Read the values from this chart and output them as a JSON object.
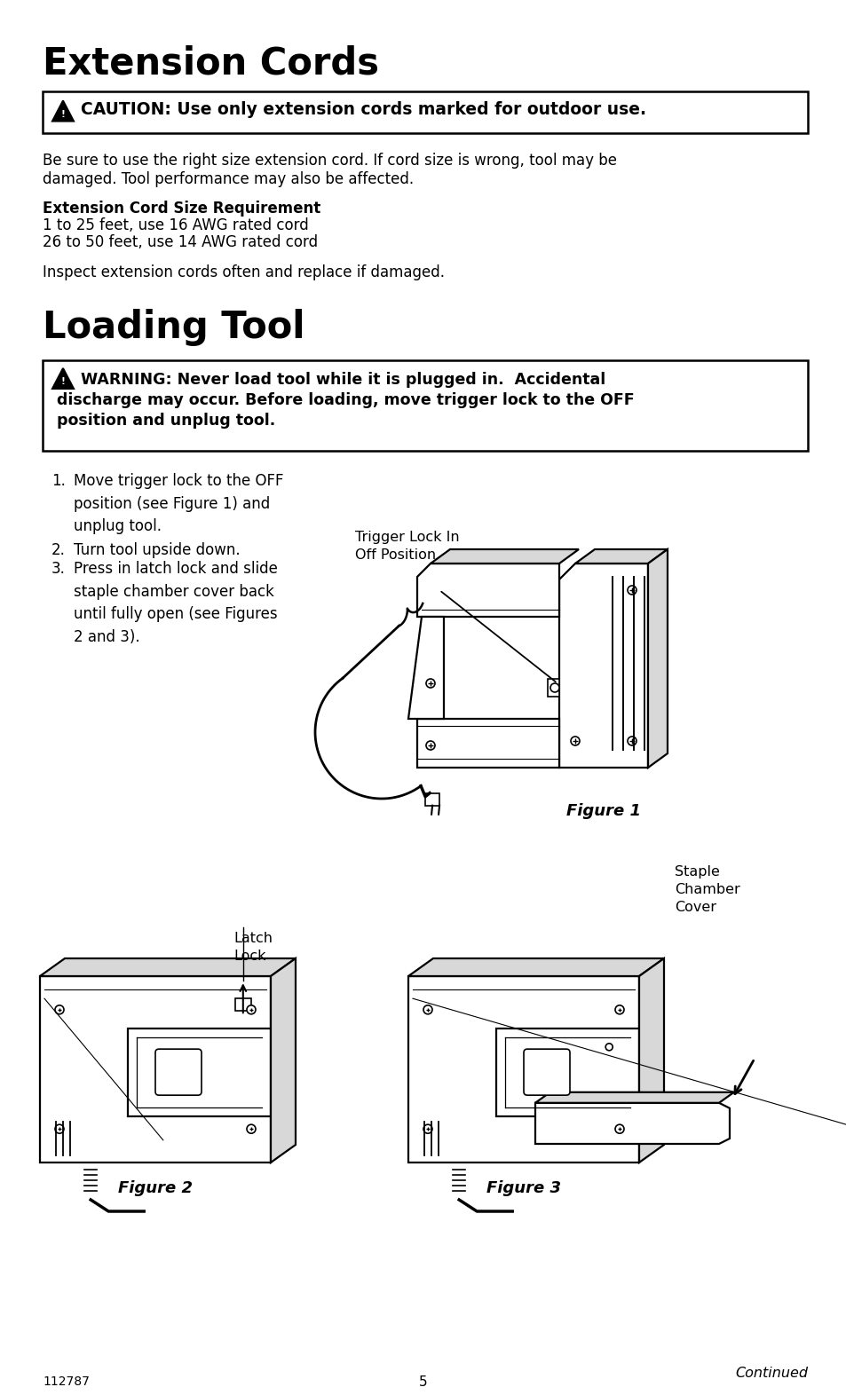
{
  "title1": "Extension Cords",
  "title2": "Loading Tool",
  "caution_text": "CAUTION: Use only extension cords marked for outdoor use.",
  "warning_line1": "WARNING: Never load tool while it is plugged in.  Accidental",
  "warning_line2": "discharge may occur. Before loading, move trigger lock to the OFF",
  "warning_line3": "position and unplug tool.",
  "body1": "Be sure to use the right size extension cord. If cord size is wrong, tool may be",
  "body2": "damaged. Tool performance may also be affected.",
  "cord_req_title": "Extension Cord Size Requirement",
  "cord_line1": "1 to 25 feet, use 16 AWG rated cord",
  "cord_line2": "26 to 50 feet, use 14 AWG rated cord",
  "inspect": "Inspect extension cords often and replace if damaged.",
  "step1_num": "1.",
  "step1_txt": "Move trigger lock to the OFF\nposition (see Figure 1) and\nunplug tool.",
  "step2_num": "2.",
  "step2_txt": "Turn tool upside down.",
  "step3_num": "3.",
  "step3_txt": "Press in latch lock and slide\nstaple chamber cover back\nuntil fully open (see Figures\n2 and 3).",
  "trigger_label": "Trigger Lock In\nOff Position",
  "fig1_label": "Figure 1",
  "latch_label": "Latch\nLock",
  "staple_label": "Staple\nChamber\nCover",
  "fig2_label": "Figure 2",
  "fig3_label": "Figure 3",
  "page_num": "5",
  "doc_num": "112787",
  "continued": "Continued",
  "bg": "#ffffff",
  "fg": "#000000",
  "light_gray": "#d8d8d8",
  "med_gray": "#aaaaaa"
}
